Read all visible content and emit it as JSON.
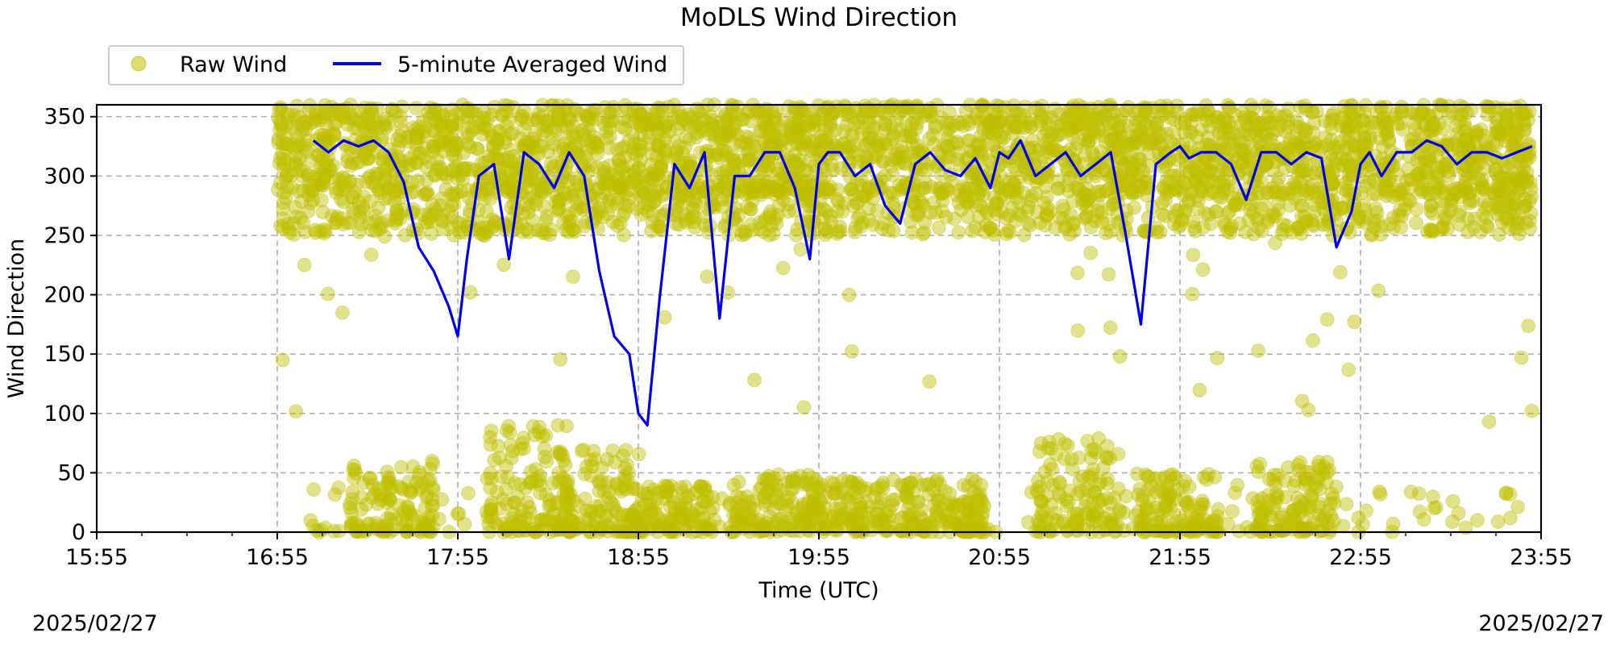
{
  "chart_data": {
    "type": "scatter",
    "title": "MoDLS Wind Direction",
    "xlabel": "Time (UTC)",
    "ylabel": "Wind Direction",
    "xlim": [
      "15:55",
      "23:55"
    ],
    "ylim": [
      0,
      360
    ],
    "x_ticks": [
      "15:55",
      "16:55",
      "17:55",
      "18:55",
      "19:55",
      "20:55",
      "21:55",
      "22:55",
      "23:55"
    ],
    "y_ticks": [
      0,
      50,
      100,
      150,
      200,
      250,
      300,
      350
    ],
    "grid": true,
    "legend_position": "top-left, above plot",
    "series": [
      {
        "name": "Raw Wind",
        "kind": "scatter",
        "color": "#bfbf00",
        "note": "dense band 280-360 from 16:55 to 23:55 with frequent readings near 0-100"
      },
      {
        "name": "5-minute Averaged Wind",
        "kind": "line",
        "color": "#0000ee",
        "x": [
          "17:07",
          "17:12",
          "17:17",
          "17:22",
          "17:27",
          "17:32",
          "17:37",
          "17:42",
          "17:47",
          "17:52",
          "17:55",
          "17:58",
          "18:02",
          "18:07",
          "18:12",
          "18:17",
          "18:22",
          "18:27",
          "18:32",
          "18:37",
          "18:42",
          "18:47",
          "18:52",
          "18:55",
          "18:58",
          "19:02",
          "19:07",
          "19:12",
          "19:17",
          "19:22",
          "19:27",
          "19:32",
          "19:37",
          "19:42",
          "19:47",
          "19:52",
          "19:55",
          "19:58",
          "20:02",
          "20:07",
          "20:12",
          "20:17",
          "20:22",
          "20:27",
          "20:32",
          "20:37",
          "20:42",
          "20:47",
          "20:52",
          "20:55",
          "20:58",
          "21:02",
          "21:07",
          "21:12",
          "21:17",
          "21:22",
          "21:27",
          "21:32",
          "21:37",
          "21:42",
          "21:47",
          "21:52",
          "21:55",
          "21:58",
          "22:02",
          "22:07",
          "22:12",
          "22:17",
          "22:22",
          "22:27",
          "22:32",
          "22:37",
          "22:42",
          "22:47",
          "22:52",
          "22:55",
          "22:58",
          "23:02",
          "23:07",
          "23:12",
          "23:17",
          "23:22",
          "23:27",
          "23:32",
          "23:37",
          "23:42",
          "23:47",
          "23:52"
        ],
        "values": [
          330,
          320,
          330,
          325,
          330,
          320,
          295,
          240,
          220,
          190,
          165,
          230,
          300,
          310,
          230,
          320,
          310,
          290,
          320,
          300,
          220,
          165,
          150,
          100,
          90,
          195,
          310,
          290,
          320,
          180,
          300,
          300,
          320,
          320,
          290,
          230,
          310,
          320,
          320,
          300,
          310,
          275,
          260,
          310,
          320,
          305,
          300,
          315,
          290,
          320,
          315,
          330,
          300,
          310,
          320,
          300,
          310,
          320,
          250,
          175,
          310,
          320,
          325,
          315,
          320,
          320,
          310,
          280,
          320,
          320,
          310,
          320,
          315,
          240,
          270,
          310,
          320,
          300,
          320,
          320,
          330,
          325,
          310,
          320,
          320,
          315,
          320,
          325
        ]
      }
    ]
  }
}
